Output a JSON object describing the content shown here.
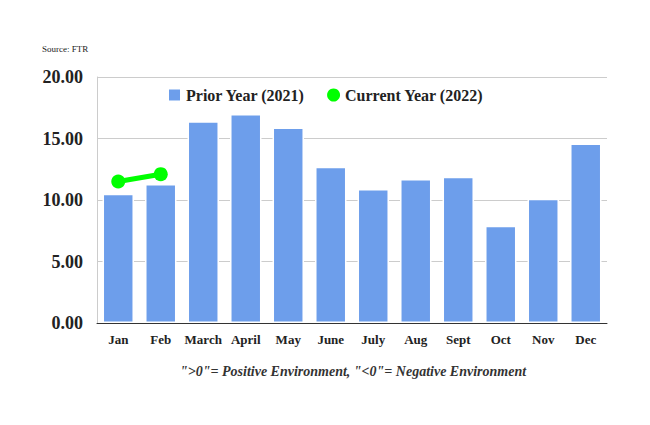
{
  "chart_data": {
    "type": "bar",
    "annotations": [
      "Source: FTR",
      "\">0\"= Positive Environment, \"<0\"= Negative Environment"
    ],
    "categories": [
      "Jan",
      "Feb",
      "March",
      "April",
      "May",
      "June",
      "July",
      "Aug",
      "Sept",
      "Oct",
      "Nov",
      "Dec"
    ],
    "series": [
      {
        "name": "Prior Year (2021)",
        "type": "bar",
        "color": "#6d9eeb",
        "values": [
          10.5,
          11.3,
          16.4,
          17.0,
          15.9,
          12.7,
          10.9,
          11.7,
          11.9,
          7.9,
          10.1,
          14.6
        ]
      },
      {
        "name": "Current Year (2022)",
        "type": "line",
        "color": "#00ff00",
        "marker": "circle",
        "values": [
          11.5,
          12.1,
          null,
          null,
          null,
          null,
          null,
          null,
          null,
          null,
          null,
          null
        ]
      }
    ],
    "ylim": [
      0,
      20
    ],
    "yticks": [
      {
        "value": 0,
        "label": "0.00"
      },
      {
        "value": 5,
        "label": "5.00"
      },
      {
        "value": 10,
        "label": "10.00"
      },
      {
        "value": 15,
        "label": "15.00"
      },
      {
        "value": 20,
        "label": "20.00"
      }
    ],
    "grid": true,
    "legend": "top"
  }
}
